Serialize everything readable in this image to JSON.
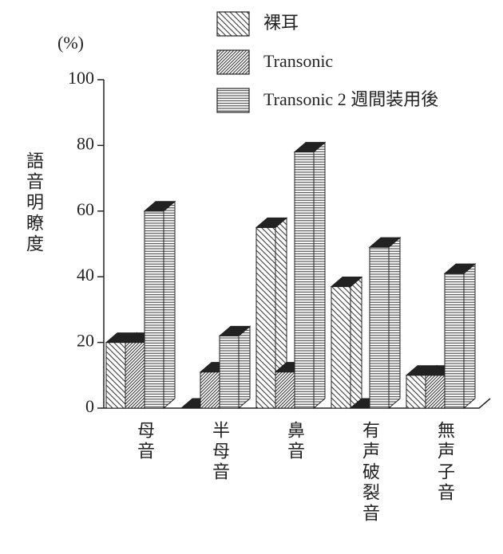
{
  "chart_data": {
    "type": "bar3d",
    "unit_label": "(%)",
    "y_label": "語音明瞭度",
    "categories": [
      "母音",
      "半母音",
      "鼻音",
      "有声破裂音",
      "無声子音"
    ],
    "series": [
      {
        "name": "裸耳",
        "color": "#222222",
        "values": [
          20,
          0,
          55,
          37,
          10
        ]
      },
      {
        "name": "Transonic",
        "color": "#222222",
        "values": [
          20,
          11,
          11,
          0,
          10
        ]
      },
      {
        "name": "Transonic 2 週間装用後",
        "color": "#222222",
        "values": [
          60,
          22,
          78,
          49,
          41
        ]
      }
    ],
    "ylim": [
      0,
      100
    ],
    "yticks": [
      0,
      20,
      40,
      60,
      80,
      100
    ]
  }
}
